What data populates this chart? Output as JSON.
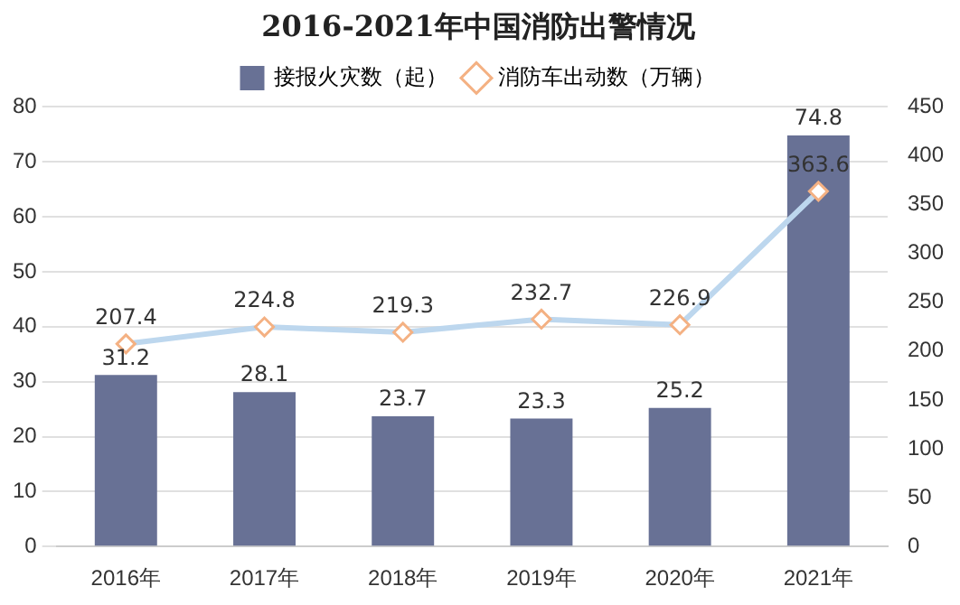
{
  "chart_data": {
    "type": "bar",
    "title": "2016-2021年中国消防出警情况",
    "categories": [
      "2016年",
      "2017年",
      "2018年",
      "2019年",
      "2020年",
      "2021年"
    ],
    "series": [
      {
        "name": "接报火灾数（起）",
        "color": "#687195",
        "values": [
          31.2,
          28.1,
          23.7,
          23.3,
          25.2,
          74.8
        ]
      },
      {
        "name": "消防车出动数（万辆）",
        "type": "line",
        "axis": "y2",
        "color": "#bdd7ee",
        "values": [
          207.4,
          224.8,
          219.3,
          232.7,
          226.9,
          363.6
        ]
      }
    ],
    "ylim": [
      0,
      80
    ],
    "yticks": [
      0,
      10,
      20,
      30,
      40,
      50,
      60,
      70,
      80
    ],
    "y2lim": [
      0,
      450
    ],
    "y2ticks": [
      0,
      50,
      100,
      150,
      200,
      250,
      300,
      350,
      400,
      450
    ],
    "grid": "y",
    "legend": "top",
    "marker": "diamond",
    "data_labels": true
  }
}
